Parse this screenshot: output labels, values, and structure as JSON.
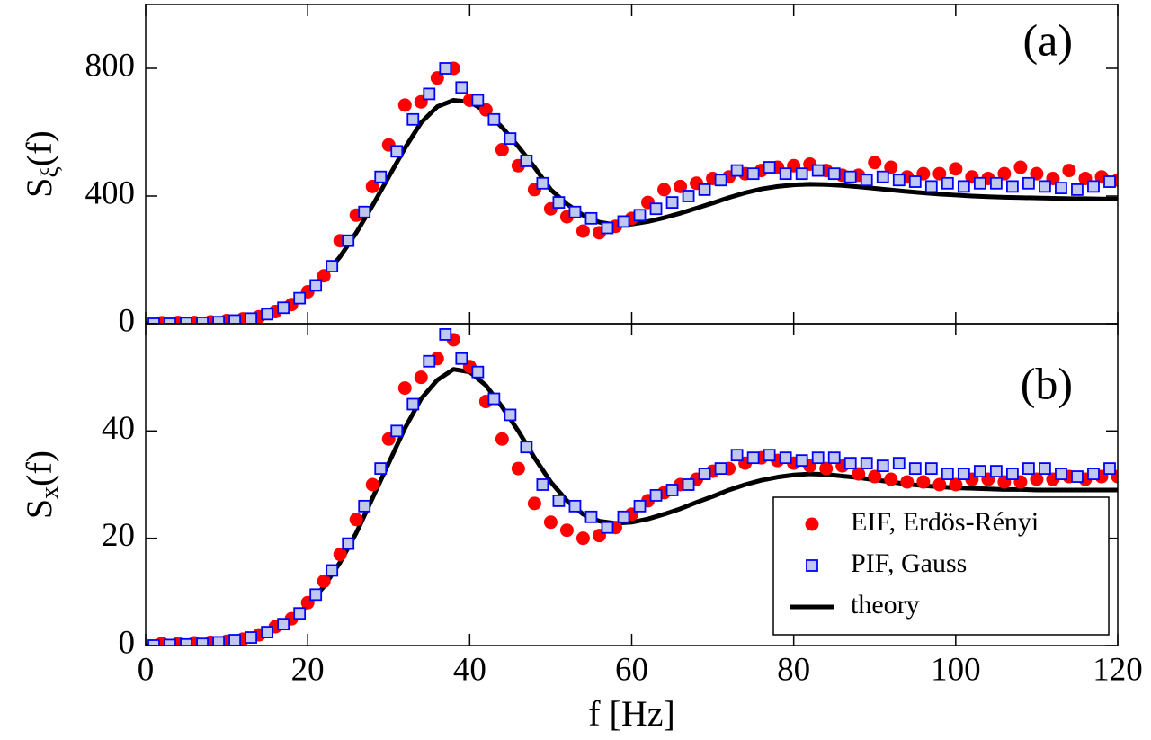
{
  "chart_data": [
    {
      "type": "scatter",
      "annotation": "(a)",
      "ylabel": [
        "S",
        "ξ",
        "(f)"
      ],
      "xlim": [
        0,
        120
      ],
      "xticks": [
        0,
        20,
        40,
        60,
        80,
        100,
        120
      ],
      "xtick_labels": false,
      "ylim": [
        0,
        1000
      ],
      "yticks": [
        0,
        400,
        800
      ],
      "series": [
        {
          "name": "EIF, Erdös-Rényi",
          "marker": "circle",
          "color": "#ff0000",
          "x": [
            2,
            4,
            6,
            8,
            10,
            12,
            14,
            16,
            18,
            20,
            22,
            24,
            26,
            28,
            30,
            32,
            34,
            36,
            38,
            40,
            42,
            44,
            46,
            48,
            50,
            52,
            54,
            56,
            58,
            60,
            62,
            64,
            66,
            68,
            70,
            72,
            74,
            76,
            78,
            80,
            82,
            84,
            86,
            88,
            90,
            92,
            94,
            96,
            98,
            100,
            102,
            104,
            106,
            108,
            110,
            112,
            114,
            116,
            118,
            120
          ],
          "values": [
            3,
            4,
            4,
            6,
            10,
            15,
            22,
            38,
            60,
            100,
            150,
            260,
            340,
            430,
            560,
            685,
            695,
            770,
            800,
            700,
            670,
            545,
            495,
            420,
            360,
            335,
            290,
            285,
            305,
            330,
            380,
            420,
            430,
            440,
            455,
            460,
            470,
            480,
            490,
            495,
            500,
            480,
            465,
            465,
            505,
            490,
            460,
            470,
            470,
            485,
            460,
            455,
            470,
            490,
            470,
            455,
            480,
            455,
            460,
            450
          ]
        },
        {
          "name": "PIF, Gauss",
          "marker": "square",
          "color": "#0000ff",
          "fill": "#c0c8ee",
          "x": [
            1,
            3,
            5,
            7,
            9,
            11,
            13,
            15,
            17,
            19,
            21,
            23,
            25,
            27,
            29,
            31,
            33,
            35,
            37,
            39,
            41,
            43,
            45,
            47,
            49,
            51,
            53,
            55,
            57,
            59,
            61,
            63,
            65,
            67,
            69,
            71,
            73,
            75,
            77,
            79,
            81,
            83,
            85,
            87,
            89,
            91,
            93,
            95,
            97,
            99,
            101,
            103,
            105,
            107,
            109,
            111,
            113,
            115,
            117,
            119
          ],
          "values": [
            0,
            0,
            2,
            3,
            5,
            10,
            16,
            30,
            50,
            80,
            120,
            180,
            260,
            350,
            460,
            540,
            640,
            720,
            800,
            740,
            700,
            640,
            580,
            510,
            440,
            380,
            350,
            330,
            300,
            320,
            340,
            360,
            380,
            400,
            420,
            450,
            480,
            470,
            490,
            470,
            470,
            480,
            470,
            460,
            450,
            460,
            450,
            445,
            430,
            440,
            430,
            440,
            440,
            430,
            440,
            430,
            425,
            420,
            430,
            445
          ]
        },
        {
          "name": "theory",
          "marker": "line",
          "color": "#000000",
          "x": [
            0,
            2,
            4,
            6,
            8,
            10,
            12,
            14,
            16,
            18,
            20,
            22,
            24,
            26,
            28,
            30,
            32,
            34,
            36,
            38,
            40,
            42,
            44,
            46,
            48,
            50,
            52,
            54,
            56,
            58,
            60,
            62,
            64,
            66,
            68,
            70,
            72,
            74,
            76,
            78,
            80,
            82,
            84,
            86,
            88,
            90,
            92,
            94,
            96,
            98,
            100,
            102,
            104,
            106,
            108,
            110,
            112,
            114,
            116,
            118,
            120
          ],
          "values": [
            0,
            0,
            1,
            2,
            4,
            8,
            14,
            24,
            40,
            65,
            100,
            150,
            210,
            285,
            370,
            460,
            550,
            630,
            680,
            700,
            695,
            665,
            615,
            555,
            490,
            420,
            375,
            340,
            318,
            310,
            312,
            320,
            332,
            346,
            362,
            378,
            395,
            410,
            422,
            430,
            435,
            437,
            436,
            433,
            429,
            424,
            419,
            414,
            410,
            406,
            403,
            400,
            398,
            396,
            395,
            394,
            393,
            392,
            392,
            391,
            391
          ]
        }
      ]
    },
    {
      "type": "scatter",
      "annotation": "(b)",
      "ylabel": [
        "S",
        "x",
        "(f)"
      ],
      "xlabel": "f [Hz]",
      "xlim": [
        0,
        120
      ],
      "xticks": [
        0,
        20,
        40,
        60,
        80,
        100,
        120
      ],
      "xtick_labels": true,
      "ylim": [
        0,
        60
      ],
      "yticks": [
        0,
        20,
        40
      ],
      "legend": "lower right",
      "series": [
        {
          "name": "EIF, Erdös-Rényi",
          "marker": "circle",
          "color": "#ff0000",
          "x": [
            2,
            4,
            6,
            8,
            10,
            12,
            14,
            16,
            18,
            20,
            22,
            24,
            26,
            28,
            30,
            32,
            34,
            36,
            38,
            40,
            42,
            44,
            46,
            48,
            50,
            52,
            54,
            56,
            58,
            60,
            62,
            64,
            66,
            68,
            70,
            72,
            74,
            76,
            78,
            80,
            82,
            84,
            86,
            88,
            90,
            92,
            94,
            96,
            98,
            100,
            102,
            104,
            106,
            108,
            110,
            112,
            114,
            116,
            118,
            120
          ],
          "values": [
            0.4,
            0.4,
            0.5,
            0.6,
            0.8,
            1.2,
            2,
            3.5,
            5,
            8,
            12,
            17,
            23.5,
            30,
            38.5,
            48,
            50,
            53.5,
            57,
            52,
            45.5,
            38.5,
            33,
            26.5,
            23,
            21.5,
            20,
            20.5,
            22,
            24.5,
            27,
            28.5,
            30,
            31,
            32.5,
            33,
            34,
            35,
            34.5,
            34,
            33.5,
            33,
            33.5,
            32,
            31.5,
            31,
            30.5,
            30.5,
            30,
            30,
            31,
            31,
            30.5,
            30.5,
            31,
            31,
            31.5,
            31,
            31.5,
            31.5
          ]
        },
        {
          "name": "PIF, Gauss",
          "marker": "square",
          "color": "#0000ff",
          "fill": "#c0c8ee",
          "x": [
            1,
            3,
            5,
            7,
            9,
            11,
            13,
            15,
            17,
            19,
            21,
            23,
            25,
            27,
            29,
            31,
            33,
            35,
            37,
            39,
            41,
            43,
            45,
            47,
            49,
            51,
            53,
            55,
            57,
            59,
            61,
            63,
            65,
            67,
            69,
            71,
            73,
            75,
            77,
            79,
            81,
            83,
            85,
            87,
            89,
            91,
            93,
            95,
            97,
            99,
            101,
            103,
            105,
            107,
            109,
            111,
            113,
            115,
            117,
            119
          ],
          "values": [
            0,
            0.1,
            0.2,
            0.3,
            0.6,
            1,
            1.5,
            2.5,
            4,
            6,
            9.5,
            14,
            19,
            26,
            33,
            40,
            45,
            53,
            58,
            53.5,
            51,
            46,
            43,
            37,
            30,
            27,
            26,
            24,
            22,
            24,
            26,
            28,
            29,
            30,
            32,
            33,
            35.5,
            35,
            35.5,
            35,
            34.5,
            35,
            35,
            34,
            34,
            33.5,
            34,
            33,
            33,
            32,
            32,
            32.5,
            32.5,
            32,
            33,
            33,
            32,
            31.5,
            32,
            33
          ]
        },
        {
          "name": "theory",
          "marker": "line",
          "color": "#000000",
          "x": [
            0,
            2,
            4,
            6,
            8,
            10,
            12,
            14,
            16,
            18,
            20,
            22,
            24,
            26,
            28,
            30,
            32,
            34,
            36,
            38,
            40,
            42,
            44,
            46,
            48,
            50,
            52,
            54,
            56,
            58,
            60,
            62,
            64,
            66,
            68,
            70,
            72,
            74,
            76,
            78,
            80,
            82,
            84,
            86,
            88,
            90,
            92,
            94,
            96,
            98,
            100,
            102,
            104,
            106,
            108,
            110,
            112,
            114,
            116,
            118,
            120
          ],
          "values": [
            0,
            0,
            0.1,
            0.2,
            0.4,
            0.7,
            1.2,
            2,
            3.2,
            5,
            7.5,
            11,
            15.5,
            21,
            27.5,
            34,
            40.5,
            46,
            49.5,
            51.5,
            51,
            48.5,
            44.5,
            40,
            35,
            30.5,
            27,
            24.5,
            23.2,
            22.8,
            23,
            23.6,
            24.5,
            25.5,
            26.7,
            27.8,
            29,
            30,
            30.8,
            31.4,
            31.8,
            32,
            31.9,
            31.6,
            31.3,
            30.9,
            30.5,
            30.1,
            29.8,
            29.6,
            29.4,
            29.3,
            29.2,
            29.1,
            29.1,
            29,
            29,
            29,
            29,
            29,
            29
          ]
        }
      ]
    }
  ]
}
